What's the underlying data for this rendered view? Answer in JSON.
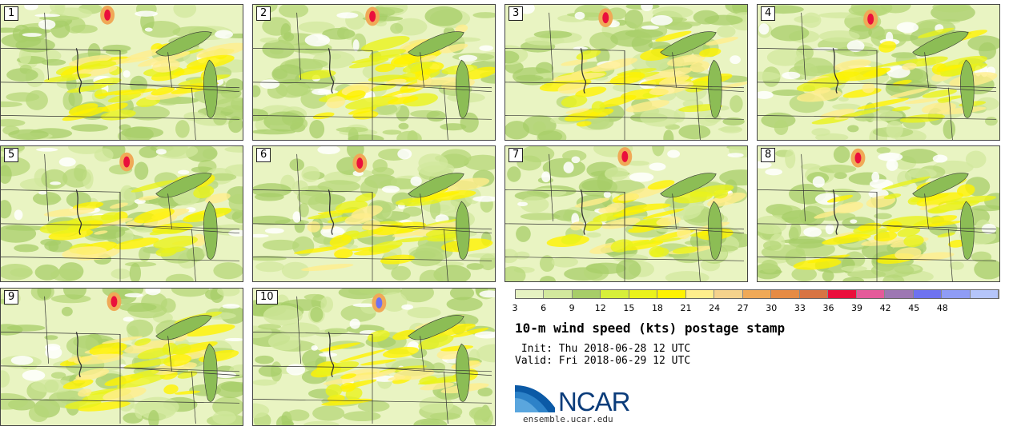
{
  "panels": [
    {
      "label": "1"
    },
    {
      "label": "2"
    },
    {
      "label": "3"
    },
    {
      "label": "4"
    },
    {
      "label": "5"
    },
    {
      "label": "6"
    },
    {
      "label": "7"
    },
    {
      "label": "8"
    },
    {
      "label": "9"
    },
    {
      "label": "10"
    }
  ],
  "legend": {
    "ticks": [
      "3",
      "6",
      "9",
      "12",
      "15",
      "18",
      "21",
      "24",
      "27",
      "30",
      "33",
      "36",
      "39",
      "42",
      "45",
      "48"
    ],
    "colors": [
      "#e6f2c2",
      "#d2e89d",
      "#a7cd68",
      "#d7ef3a",
      "#eaf21b",
      "#fff200",
      "#ffee8c",
      "#f5d28c",
      "#f0a957",
      "#e68b44",
      "#d87443",
      "#ea0f3c",
      "#e55a9a",
      "#9d77b3",
      "#6e72f0",
      "#8f9cf6",
      "#b5c5fa"
    ]
  },
  "title": "10-m wind speed (kts) postage stamp",
  "init": " Init: Thu 2018-06-28 12 UTC",
  "valid": "Valid: Fri 2018-06-29 12 UTC",
  "logo": {
    "name": "NCAR",
    "url": "ensemble.ucar.edu"
  }
}
